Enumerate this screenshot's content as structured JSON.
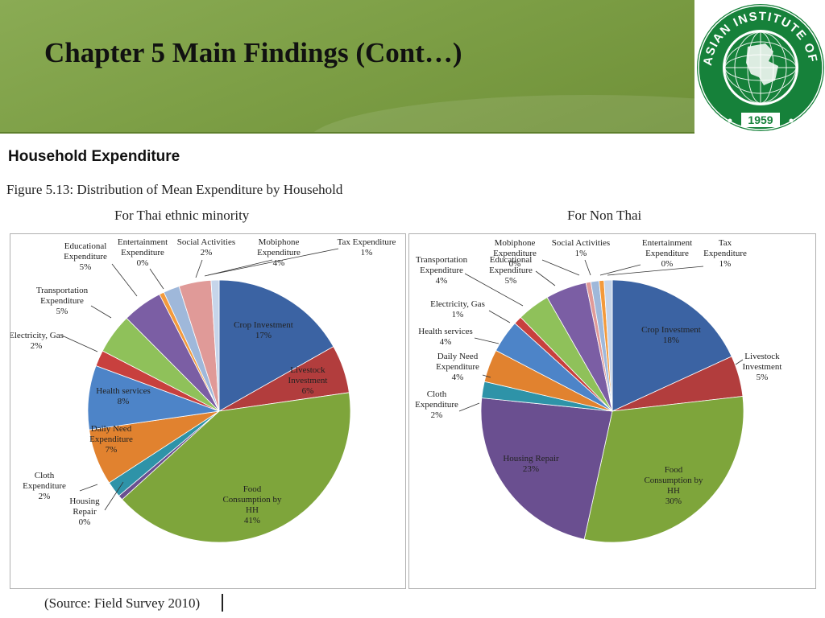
{
  "slide": {
    "title": "Chapter 5 Main Findings (Cont…)",
    "section_title": "Household Expenditure",
    "figure_caption": "Figure 5.13: Distribution of Mean Expenditure by Household",
    "source": "(Source: Field Survey 2010)"
  },
  "logo": {
    "text": "ASIAN INSTITUTE OF TECHNOLOGY",
    "year": "1959",
    "color": "#16813a"
  },
  "colors": {
    "header_green": "#7d9f46",
    "crop": "#3b63a3",
    "livestock": "#b23d3d",
    "food": "#7ea53b",
    "housing": "#6a4f90",
    "cloth": "#2e93a8",
    "daily_need": "#e1822f",
    "health": "#4d84c8",
    "electricity": "#c8403e",
    "transport": "#8fc15a",
    "educational": "#7b5ea4",
    "entertainment": "#f39a3c",
    "social": "#9fb8da",
    "mobiphone": "#e09a98",
    "tax": "#c6d5ea"
  },
  "chart_data": [
    {
      "type": "pie",
      "title": "For Thai ethnic minority",
      "slices": [
        {
          "label": "Crop Investment",
          "value": 17,
          "color": "#3b63a3"
        },
        {
          "label": "Livestock Investment",
          "value": 6,
          "color": "#b23d3d"
        },
        {
          "label": "Food Consumption by HH",
          "value": 41,
          "color": "#7ea53b"
        },
        {
          "label": "Housing Repair",
          "value": 0,
          "color": "#6a4f90"
        },
        {
          "label": "Cloth Expenditure",
          "value": 2,
          "color": "#2e93a8"
        },
        {
          "label": "Daily Need Expenditure",
          "value": 7,
          "color": "#e1822f"
        },
        {
          "label": "Health services",
          "value": 8,
          "color": "#4d84c8"
        },
        {
          "label": "Electricity, Gas",
          "value": 2,
          "color": "#c8403e"
        },
        {
          "label": "Transportation Expenditure",
          "value": 5,
          "color": "#8fc15a"
        },
        {
          "label": "Educational Expenditure",
          "value": 5,
          "color": "#7b5ea4"
        },
        {
          "label": "Entertainment Expenditure",
          "value": 0,
          "color": "#f39a3c"
        },
        {
          "label": "Social Activities",
          "value": 2,
          "color": "#9fb8da"
        },
        {
          "label": "Mobiphone Expenditure",
          "value": 4,
          "color": "#e09a98"
        },
        {
          "label": "Tax Expenditure",
          "value": 1,
          "color": "#c6d5ea"
        }
      ],
      "labels": [
        {
          "lines": [
            "Crop Investment",
            "17%"
          ],
          "pos": "inside"
        },
        {
          "lines": [
            "Livestock",
            "Investment",
            "6%"
          ],
          "pos": "inside"
        },
        {
          "lines": [
            "Food",
            "Consumption by",
            "HH",
            "41%"
          ],
          "pos": "inside"
        },
        {
          "lines": [
            "Housing",
            "Repair",
            "0%"
          ],
          "pos": "outside"
        },
        {
          "lines": [
            "Cloth",
            "Expenditure",
            "2%"
          ],
          "pos": "outside"
        },
        {
          "lines": [
            "Daily Need",
            "Expenditure",
            "7%"
          ],
          "pos": "inside"
        },
        {
          "lines": [
            "Health services",
            "8%"
          ],
          "pos": "inside"
        },
        {
          "lines": [
            "Electricity, Gas",
            "2%"
          ],
          "pos": "outside"
        },
        {
          "lines": [
            "Transportation",
            "Expenditure",
            "5%"
          ],
          "pos": "outside"
        },
        {
          "lines": [
            "Educational",
            "Expenditure",
            "5%"
          ],
          "pos": "outside"
        },
        {
          "lines": [
            "Entertainment",
            "Expenditure",
            "0%"
          ],
          "pos": "outside"
        },
        {
          "lines": [
            "Social Activities",
            "2%"
          ],
          "pos": "outside"
        },
        {
          "lines": [
            "Mobiphone",
            "Expenditure",
            "4%"
          ],
          "pos": "outside"
        },
        {
          "lines": [
            "Tax Expenditure",
            "1%"
          ],
          "pos": "outside"
        }
      ]
    },
    {
      "type": "pie",
      "title": "For Non Thai",
      "slices": [
        {
          "label": "Crop Investment",
          "value": 18,
          "color": "#3b63a3"
        },
        {
          "label": "Livestock Investment",
          "value": 5,
          "color": "#b23d3d"
        },
        {
          "label": "Food Consumption by HH",
          "value": 30,
          "color": "#7ea53b"
        },
        {
          "label": "Housing Repair",
          "value": 23,
          "color": "#6a4f90"
        },
        {
          "label": "Cloth Expenditure",
          "value": 2,
          "color": "#2e93a8"
        },
        {
          "label": "Daily Need Expenditure",
          "value": 4,
          "color": "#e1822f"
        },
        {
          "label": "Health services",
          "value": 4,
          "color": "#4d84c8"
        },
        {
          "label": "Electricity, Gas",
          "value": 1,
          "color": "#c8403e"
        },
        {
          "label": "Transportation Expenditure",
          "value": 4,
          "color": "#8fc15a"
        },
        {
          "label": "Educational Expenditure",
          "value": 5,
          "color": "#7b5ea4"
        },
        {
          "label": "Mobiphone Expenditure",
          "value": 0,
          "color": "#e09a98"
        },
        {
          "label": "Social Activities",
          "value": 1,
          "color": "#9fb8da"
        },
        {
          "label": "Entertainment Expenditure",
          "value": 0,
          "color": "#f39a3c"
        },
        {
          "label": "Tax Expenditure",
          "value": 1,
          "color": "#c6d5ea"
        }
      ],
      "labels": [
        {
          "lines": [
            "Crop Investment",
            "18%"
          ],
          "pos": "inside"
        },
        {
          "lines": [
            "Livestock",
            "Investment",
            "5%"
          ],
          "pos": "outside"
        },
        {
          "lines": [
            "Food",
            "Consumption by",
            "HH",
            "30%"
          ],
          "pos": "inside"
        },
        {
          "lines": [
            "Housing Repair",
            "23%"
          ],
          "pos": "inside"
        },
        {
          "lines": [
            "Cloth",
            "Expenditure",
            "2%"
          ],
          "pos": "outside"
        },
        {
          "lines": [
            "Daily Need",
            "Expenditure",
            "4%"
          ],
          "pos": "outside"
        },
        {
          "lines": [
            "Health services",
            "4%"
          ],
          "pos": "outside"
        },
        {
          "lines": [
            "Electricity, Gas",
            "1%"
          ],
          "pos": "outside"
        },
        {
          "lines": [
            "Transportation",
            "Expenditure",
            "4%"
          ],
          "pos": "outside"
        },
        {
          "lines": [
            "Educational",
            "Expenditure",
            "5%"
          ],
          "pos": "outside"
        },
        {
          "lines": [
            "Mobiphone",
            "Expenditure",
            "0%"
          ],
          "pos": "outside"
        },
        {
          "lines": [
            "Social Activities",
            "1%"
          ],
          "pos": "outside"
        },
        {
          "lines": [
            "Entertainment",
            "Expenditure",
            "0%"
          ],
          "pos": "outside"
        },
        {
          "lines": [
            "Tax",
            "Expenditure",
            "1%"
          ],
          "pos": "outside"
        }
      ]
    }
  ]
}
